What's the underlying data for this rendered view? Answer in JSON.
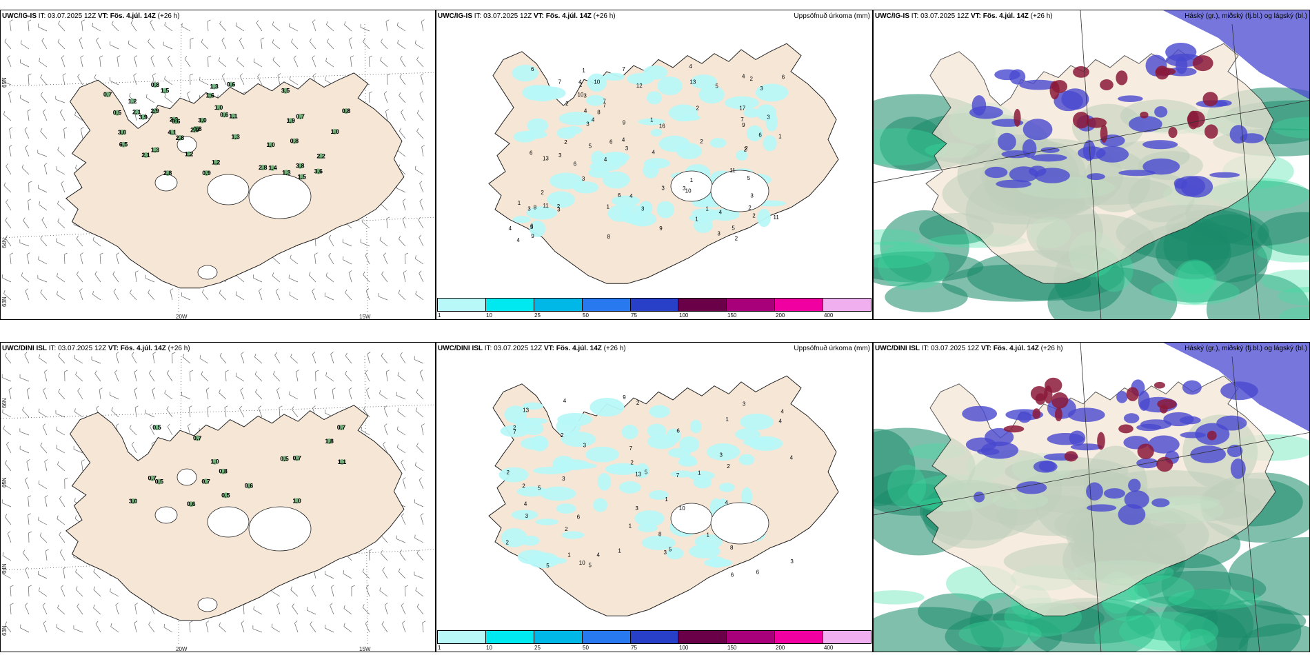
{
  "top_row": {
    "wind_panel": {
      "model": "UWC/IG-IS",
      "it_label": "IT:",
      "it_value": "03.07.2025 12Z",
      "vt_label": "VT:",
      "vt_value": "Fös. 4.júl. 14Z",
      "lead": "(+26 h)",
      "lat_labels": [
        "65N",
        "64N",
        "63N"
      ],
      "lon_labels": [
        "20W",
        "15W"
      ],
      "values": [
        "2.1",
        "2.8",
        "1.3",
        "3.0",
        "1.5",
        "0.8",
        "0.9",
        "3.0",
        "1.3",
        "1.1",
        "1.6",
        "3.6",
        "3.5",
        "1.0",
        "0.6",
        "0.8",
        "1.0",
        "0.6",
        "3.8",
        "2.1",
        "1.2",
        "2.8",
        "0.7",
        "1.3",
        "2.8",
        "1.3",
        "1.4",
        "0.8",
        "1.9",
        "2.3",
        "1.5",
        "4.1",
        "2.2",
        "0.5",
        "1.2",
        "0.7",
        "6.5",
        "0.6",
        "2.0",
        "2.9",
        "1.2",
        "1.0",
        "0.8",
        "3.9"
      ]
    },
    "precip_panel": {
      "model": "UWC/IG-IS",
      "it_label": "IT:",
      "it_value": "03.07.2025 12Z",
      "vt_label": "VT:",
      "vt_value": "Fös. 4.júl. 14Z",
      "lead": "(+26 h)",
      "right_title": "Uppsöfnuð úrkoma (mm)",
      "values": [
        "2",
        "3",
        "6",
        "5",
        "17",
        "9",
        "4",
        "2",
        "1",
        "2",
        "3",
        "2",
        "5",
        "6",
        "6",
        "4",
        "2",
        "1",
        "8",
        "5",
        "3",
        "4",
        "3",
        "11",
        "3",
        "3",
        "16",
        "4",
        "2",
        "9",
        "7",
        "5",
        "10",
        "6",
        "7",
        "8",
        "12",
        "3",
        "4",
        "7",
        "3",
        "9",
        "2",
        "7",
        "6",
        "4",
        "5",
        "13",
        "10",
        "2",
        "3",
        "8",
        "6",
        "3",
        "3",
        "4",
        "11",
        "6",
        "4",
        "4",
        "3",
        "2",
        "4",
        "1",
        "7",
        "13",
        "2",
        "6",
        "3",
        "10",
        "2",
        "11",
        "4",
        "9",
        "2",
        "4",
        "3",
        "1",
        "1",
        "1",
        "2",
        "1",
        "1"
      ]
    },
    "cloud_panel": {
      "model": "UWC/IG-IS",
      "it_label": "IT:",
      "it_value": "03.07.2025 12Z",
      "vt_label": "VT:",
      "vt_value": "Fös. 4.júl. 14Z",
      "lead": "(+26 h)",
      "right_title": "Háský (gr.), miðský (fj.bl.) og lágský (bl.)"
    }
  },
  "bottom_row": {
    "wind_panel": {
      "model": "UWC/DINI ISL",
      "it_label": "IT:",
      "it_value": "03.07.2025 12Z",
      "vt_label": "VT:",
      "vt_value": "Fös. 4.júl. 14Z",
      "lead": "(+26 h)",
      "lat_labels": [
        "66N",
        "65N",
        "64N",
        "63N"
      ],
      "lon_labels": [
        "20W",
        "15W"
      ],
      "values": [
        "0.5",
        "1.0",
        "0.7",
        "0.8",
        "0.5",
        "0.7",
        "1.0",
        "0.7",
        "0.7",
        "1.1",
        "0.5",
        "0.5",
        "0.6",
        "1.8",
        "3.0",
        "0.7",
        "0.6"
      ]
    },
    "precip_panel": {
      "model": "UWC/DINI ISL",
      "it_label": "IT:",
      "it_value": "03.07.2025 12Z",
      "vt_label": "VT:",
      "vt_value": "Fös. 4.júl. 14Z",
      "lead": "(+26 h)",
      "right_title": "Uppsöfnuð úrkoma (mm)",
      "values": [
        "2",
        "2",
        "3",
        "4",
        "2",
        "6",
        "5",
        "6",
        "7",
        "3",
        "5",
        "4",
        "9",
        "7",
        "2",
        "2",
        "5",
        "2",
        "1",
        "1",
        "1",
        "8",
        "4",
        "2",
        "1",
        "13",
        "10",
        "4",
        "5",
        "3",
        "4",
        "6",
        "7",
        "5",
        "10",
        "3",
        "2",
        "13",
        "4",
        "3",
        "8",
        "1",
        "3",
        "4",
        "3",
        "6",
        "1",
        "2",
        "1",
        "3"
      ]
    },
    "cloud_panel": {
      "model": "UWC/DINI ISL",
      "it_label": "IT:",
      "it_value": "03.07.2025 12Z",
      "vt_label": "VT:",
      "vt_value": "Fös. 4.júl. 14Z",
      "lead": "(+26 h)",
      "right_title": "Háský (gr.), miðský (fj.bl.) og lágský (bl.)"
    }
  },
  "colorbar": {
    "labels": [
      "1",
      "10",
      "25",
      "50",
      "75",
      "100",
      "150",
      "200",
      "400"
    ],
    "colors": [
      "#b8f8f8",
      "#00e8f0",
      "#00b8e8",
      "#2878f0",
      "#2840c8",
      "#6a0048",
      "#a8007a",
      "#f000a0",
      "#f0b0f0"
    ]
  },
  "colors": {
    "land": "#f5e6d6",
    "coast": "#222222",
    "wind_marker": "#1a8a3a",
    "precip_light": "#b8f8f8",
    "cloud_high": "#8b1a3a",
    "cloud_mid": "#4848d0",
    "cloud_low": "#1a8a6a"
  }
}
